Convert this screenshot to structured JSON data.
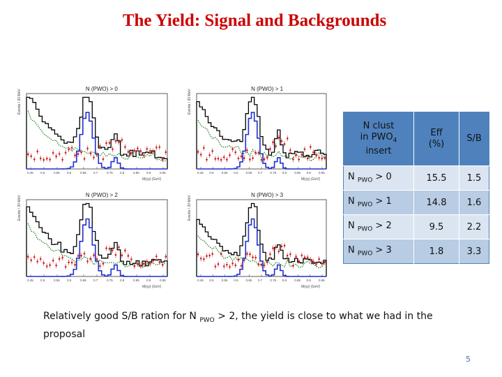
{
  "slide": {
    "title": "The Yield:  Signal and Backgrounds",
    "page_number": "5"
  },
  "plots": [
    {
      "label": "N (PWO) > 0",
      "ylabel": "Events / 20 MeV",
      "xlabel": "M(γγ) (GeV)",
      "xticks": [
        "0.45",
        "0.5",
        "0.55",
        "0.6",
        "0.65",
        "0.7",
        "0.75",
        "0.8",
        "0.85",
        "0.9",
        "0.95"
      ]
    },
    {
      "label": "N (PWO) > 1",
      "ylabel": "Events / 20 MeV",
      "xlabel": "M(γγ) (GeV)",
      "xticks": [
        "0.45",
        "0.5",
        "0.55",
        "0.6",
        "0.65",
        "0.7",
        "0.75",
        "0.8",
        "0.85",
        "0.9",
        "0.95"
      ]
    },
    {
      "label": "N (PWO) > 2",
      "ylabel": "Events / 20 MeV",
      "xlabel": "M(γγ) (GeV)",
      "xticks": [
        "0.45",
        "0.5",
        "0.55",
        "0.6",
        "0.65",
        "0.7",
        "0.75",
        "0.8",
        "0.85",
        "0.9",
        "0.95"
      ]
    },
    {
      "label": "N (PWO) > 3",
      "ylabel": "Events / 20 MeV",
      "xlabel": "M(γγ) (GeV)",
      "xticks": [
        "0.45",
        "0.5",
        "0.55",
        "0.6",
        "0.65",
        "0.7",
        "0.75",
        "0.8",
        "0.85",
        "0.9",
        "0.95"
      ]
    }
  ],
  "table": {
    "headers": {
      "col1_line1": "N clust",
      "col1_line2": "in PWO",
      "col1_sub": "4",
      "col1_line3": "insert",
      "col2_line1": "Eff",
      "col2_line2": "(%)",
      "col3": "S/B"
    },
    "rows": [
      {
        "n": "N",
        "sub": "PWO",
        "cond": " > 0",
        "eff": "15.5",
        "sb": "1.5"
      },
      {
        "n": "N",
        "sub": "PWO",
        "cond": " > 1",
        "eff": "14.8",
        "sb": "1.6"
      },
      {
        "n": "N",
        "sub": "PWO",
        "cond": " > 2",
        "eff": "9.5",
        "sb": "2.2"
      },
      {
        "n": "N",
        "sub": "PWO",
        "cond": " > 3",
        "eff": "1.8",
        "sb": "3.3"
      }
    ]
  },
  "note": {
    "part1": "Relatively good S/B ration for N ",
    "sub": "PWO",
    "part2": " > 2, the yield is close to what we had in the proposal"
  },
  "colors": {
    "title": "#cc0000",
    "signal": "#1f2fd0",
    "total": "#000000",
    "bkg_green": "#1a7a1a",
    "bkg_red": "#cc1a1a"
  }
}
